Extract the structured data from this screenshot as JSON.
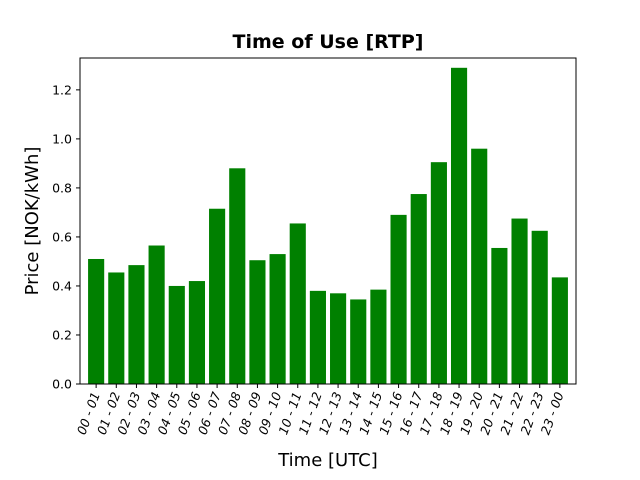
{
  "chart_data": {
    "type": "bar",
    "title": "Time of Use [RTP]",
    "xlabel": "Time [UTC]",
    "ylabel": "Price [NOK/kWh]",
    "ylim": [
      0,
      1.33
    ],
    "yticks": [
      0.0,
      0.2,
      0.4,
      0.6,
      0.8,
      1.0,
      1.2
    ],
    "ytick_labels": [
      "0.0",
      "0.2",
      "0.4",
      "0.6",
      "0.8",
      "1.0",
      "1.2"
    ],
    "grid": false,
    "legend": "none",
    "bar_color": "#008000",
    "categories": [
      "00 - 01",
      "01 - 02",
      "02 - 03",
      "03 - 04",
      "04 - 05",
      "05 - 06",
      "06 - 07",
      "07 - 08",
      "08 - 09",
      "09 - 10",
      "10 - 11",
      "11 - 12",
      "12 - 13",
      "13 - 14",
      "14 - 15",
      "15 - 16",
      "16 - 17",
      "17 - 18",
      "18 - 19",
      "19 - 20",
      "20 - 21",
      "21 - 22",
      "22 - 23",
      "23 - 00"
    ],
    "values": [
      0.51,
      0.455,
      0.485,
      0.565,
      0.4,
      0.42,
      0.715,
      0.88,
      0.505,
      0.53,
      0.655,
      0.38,
      0.37,
      0.345,
      0.385,
      0.69,
      0.775,
      0.905,
      1.29,
      0.96,
      0.555,
      0.675,
      0.625,
      0.435
    ]
  }
}
